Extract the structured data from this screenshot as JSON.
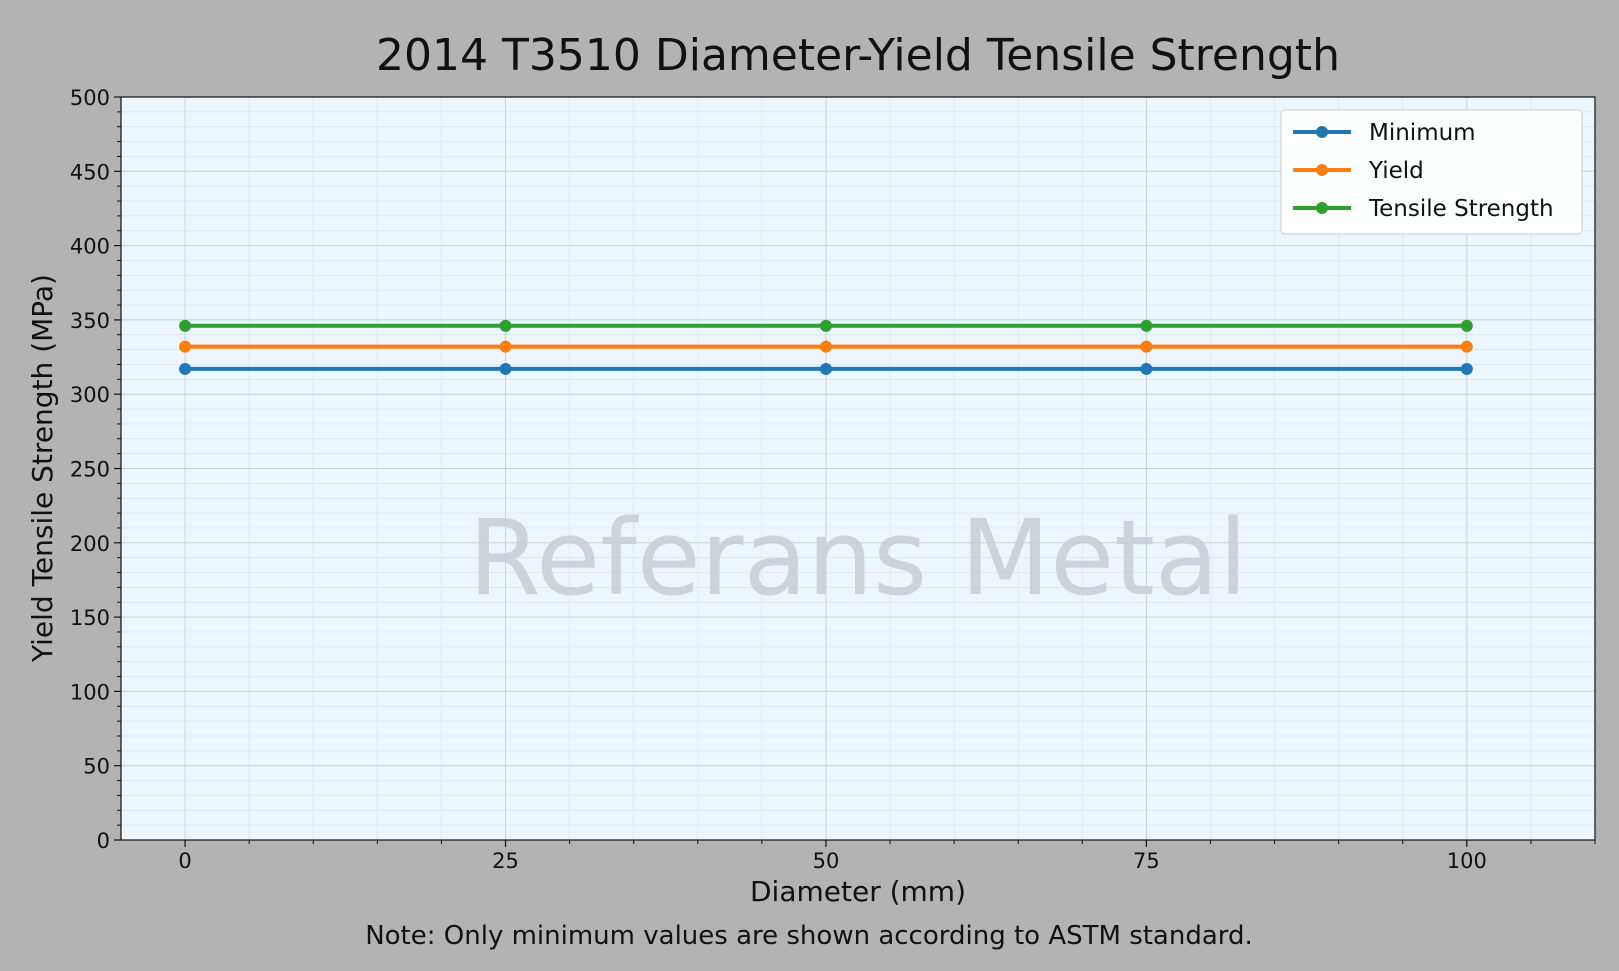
{
  "chart_data": {
    "type": "line",
    "title": "2014 T3510 Diameter-Yield Tensile Strength",
    "xlabel": "Diameter (mm)",
    "ylabel": "Yield Tensile Strength (MPa)",
    "x": [
      0,
      25,
      50,
      75,
      100
    ],
    "xlim": [
      -5,
      110
    ],
    "ylim": [
      0,
      500
    ],
    "x_ticks": [
      "0",
      "25",
      "50",
      "75",
      "100"
    ],
    "y_ticks": [
      "0",
      "50",
      "100",
      "150",
      "200",
      "250",
      "300",
      "350",
      "400",
      "450",
      "500"
    ],
    "grid": true,
    "legend_position": "top-right",
    "series": [
      {
        "name": "Minimum",
        "color": "#1f77b4",
        "values": [
          317,
          317,
          317,
          317,
          317
        ]
      },
      {
        "name": "Yield",
        "color": "#ff7f0e",
        "values": [
          332,
          332,
          332,
          332,
          332
        ]
      },
      {
        "name": "Tensile Strength",
        "color": "#2ca02c",
        "values": [
          346,
          346,
          346,
          346,
          346
        ]
      }
    ]
  },
  "watermark": "Referans Metal",
  "note": "Note: Only minimum values are shown according to ASTM standard.",
  "colors": {
    "figure_background": "#b3b3b3",
    "plot_background": "#eef6fd"
  }
}
